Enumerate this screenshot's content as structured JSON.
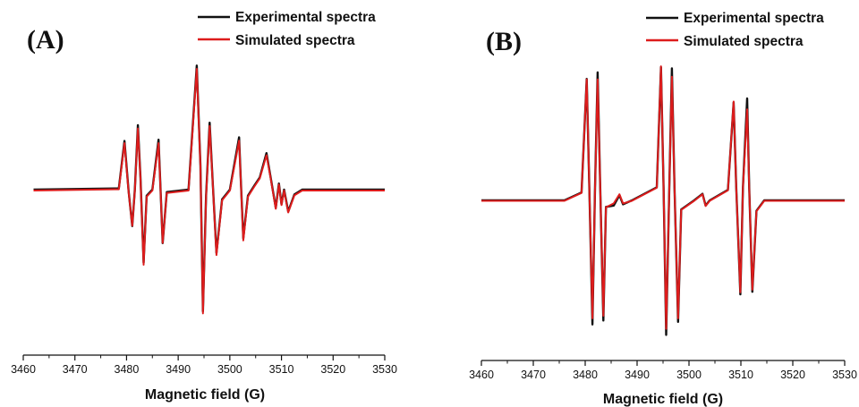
{
  "chart_data": [
    {
      "type": "line",
      "panel_label": "(A)",
      "xlabel": "Magnetic field (G)",
      "ylabel": "",
      "xlim": [
        3460,
        3530
      ],
      "ylim": [
        -1.0,
        1.0
      ],
      "xticks": [
        3460,
        3470,
        3480,
        3490,
        3500,
        3510,
        3520,
        3530
      ],
      "y_axis_visible": false,
      "legend_position": "top-right",
      "series": [
        {
          "name": "Experimental spectra",
          "color": "#111111",
          "points": [
            [
              3462,
              0.0
            ],
            [
              3478.5,
              0.01
            ],
            [
              3479.6,
              0.4
            ],
            [
              3480.4,
              -0.01
            ],
            [
              3481.1,
              -0.3
            ],
            [
              3481.6,
              0.0
            ],
            [
              3482.2,
              0.53
            ],
            [
              3482.7,
              0.1
            ],
            [
              3483.3,
              -0.6
            ],
            [
              3483.9,
              -0.05
            ],
            [
              3485.0,
              0.0
            ],
            [
              3486.2,
              0.41
            ],
            [
              3486.5,
              0.1
            ],
            [
              3487.0,
              -0.44
            ],
            [
              3487.8,
              -0.02
            ],
            [
              3492.0,
              0.0
            ],
            [
              3493.6,
              1.02
            ],
            [
              3494.3,
              0.2
            ],
            [
              3494.8,
              -1.0
            ],
            [
              3495.4,
              -0.05
            ],
            [
              3496.1,
              0.55
            ],
            [
              3496.7,
              0.05
            ],
            [
              3497.4,
              -0.52
            ],
            [
              3498.5,
              -0.08
            ],
            [
              3500.0,
              0.0
            ],
            [
              3501.8,
              0.43
            ],
            [
              3502.1,
              0.1
            ],
            [
              3502.6,
              -0.4
            ],
            [
              3503.5,
              -0.05
            ],
            [
              3504.7,
              0.03
            ],
            [
              3505.8,
              0.1
            ],
            [
              3507.1,
              0.3
            ],
            [
              3507.9,
              0.1
            ],
            [
              3508.9,
              -0.15
            ],
            [
              3509.5,
              0.05
            ],
            [
              3510.0,
              -0.12
            ],
            [
              3510.5,
              0.0
            ],
            [
              3511.3,
              -0.18
            ],
            [
              3512.5,
              -0.04
            ],
            [
              3514.0,
              0.0
            ],
            [
              3530.0,
              0.0
            ]
          ]
        },
        {
          "name": "Simulated spectra",
          "color": "#dd1c1c",
          "points": [
            [
              3462,
              0.0
            ],
            [
              3478.5,
              0.01
            ],
            [
              3479.6,
              0.39
            ],
            [
              3480.4,
              -0.01
            ],
            [
              3481.1,
              -0.29
            ],
            [
              3481.6,
              0.0
            ],
            [
              3482.2,
              0.51
            ],
            [
              3482.7,
              0.1
            ],
            [
              3483.3,
              -0.61
            ],
            [
              3483.9,
              -0.05
            ],
            [
              3485.0,
              0.0
            ],
            [
              3486.2,
              0.39
            ],
            [
              3486.5,
              0.1
            ],
            [
              3487.0,
              -0.43
            ],
            [
              3487.8,
              -0.02
            ],
            [
              3492.0,
              0.0
            ],
            [
              3493.6,
              1.0
            ],
            [
              3494.3,
              0.2
            ],
            [
              3494.8,
              -1.01
            ],
            [
              3495.4,
              -0.05
            ],
            [
              3496.1,
              0.53
            ],
            [
              3496.7,
              0.05
            ],
            [
              3497.4,
              -0.53
            ],
            [
              3498.5,
              -0.08
            ],
            [
              3500.0,
              0.0
            ],
            [
              3501.8,
              0.41
            ],
            [
              3502.1,
              0.1
            ],
            [
              3502.6,
              -0.41
            ],
            [
              3503.5,
              -0.05
            ],
            [
              3504.7,
              0.03
            ],
            [
              3505.8,
              0.1
            ],
            [
              3507.1,
              0.29
            ],
            [
              3507.9,
              0.1
            ],
            [
              3508.9,
              -0.15
            ],
            [
              3509.5,
              0.05
            ],
            [
              3510.0,
              -0.12
            ],
            [
              3510.5,
              0.0
            ],
            [
              3511.3,
              -0.18
            ],
            [
              3512.5,
              -0.04
            ],
            [
              3514.0,
              0.0
            ],
            [
              3530.0,
              0.0
            ]
          ]
        }
      ]
    },
    {
      "type": "line",
      "panel_label": "(B)",
      "xlabel": "Magnetic field (G)",
      "ylabel": "",
      "xlim": [
        3460,
        3530
      ],
      "ylim": [
        -1.0,
        1.0
      ],
      "xticks": [
        3460,
        3470,
        3480,
        3490,
        3500,
        3510,
        3520,
        3530
      ],
      "y_axis_visible": false,
      "legend_position": "top-right",
      "series": [
        {
          "name": "Experimental spectra",
          "color": "#111111",
          "points": [
            [
              3460,
              0.0
            ],
            [
              3476.0,
              0.0
            ],
            [
              3479.3,
              0.06
            ],
            [
              3480.3,
              0.93
            ],
            [
              3480.8,
              0.1
            ],
            [
              3481.4,
              -0.95
            ],
            [
              3481.9,
              0.1
            ],
            [
              3482.4,
              0.98
            ],
            [
              3482.9,
              0.1
            ],
            [
              3483.5,
              -0.92
            ],
            [
              3484.0,
              -0.05
            ],
            [
              3485.5,
              -0.04
            ],
            [
              3486.6,
              0.04
            ],
            [
              3487.3,
              -0.03
            ],
            [
              3489.0,
              0.0
            ],
            [
              3493.8,
              0.1
            ],
            [
              3494.6,
              1.02
            ],
            [
              3495.1,
              0.1
            ],
            [
              3495.6,
              -1.03
            ],
            [
              3496.2,
              0.1
            ],
            [
              3496.7,
              1.01
            ],
            [
              3497.2,
              0.1
            ],
            [
              3497.9,
              -0.93
            ],
            [
              3498.5,
              -0.07
            ],
            [
              3501.0,
              0.0
            ],
            [
              3502.6,
              0.05
            ],
            [
              3503.2,
              -0.04
            ],
            [
              3504.0,
              0.0
            ],
            [
              3507.5,
              0.08
            ],
            [
              3508.6,
              0.75
            ],
            [
              3509.1,
              0.1
            ],
            [
              3509.9,
              -0.72
            ],
            [
              3510.4,
              0.1
            ],
            [
              3511.2,
              0.78
            ],
            [
              3511.6,
              0.1
            ],
            [
              3512.2,
              -0.7
            ],
            [
              3513.0,
              -0.08
            ],
            [
              3514.5,
              0.0
            ],
            [
              3530.0,
              0.0
            ]
          ]
        },
        {
          "name": "Simulated spectra",
          "color": "#dd1c1c",
          "points": [
            [
              3460,
              0.0
            ],
            [
              3476.0,
              0.0
            ],
            [
              3479.3,
              0.06
            ],
            [
              3480.3,
              0.93
            ],
            [
              3480.8,
              0.1
            ],
            [
              3481.4,
              -0.9
            ],
            [
              3481.9,
              0.1
            ],
            [
              3482.4,
              0.93
            ],
            [
              3482.9,
              0.1
            ],
            [
              3483.5,
              -0.88
            ],
            [
              3484.0,
              -0.05
            ],
            [
              3485.5,
              -0.02
            ],
            [
              3486.6,
              0.05
            ],
            [
              3487.3,
              -0.02
            ],
            [
              3489.0,
              0.0
            ],
            [
              3493.8,
              0.1
            ],
            [
              3494.6,
              1.03
            ],
            [
              3495.1,
              0.1
            ],
            [
              3495.6,
              -0.98
            ],
            [
              3496.2,
              0.1
            ],
            [
              3496.7,
              0.95
            ],
            [
              3497.2,
              0.1
            ],
            [
              3497.9,
              -0.9
            ],
            [
              3498.5,
              -0.07
            ],
            [
              3501.0,
              0.0
            ],
            [
              3502.6,
              0.05
            ],
            [
              3503.2,
              -0.04
            ],
            [
              3504.0,
              0.0
            ],
            [
              3507.5,
              0.08
            ],
            [
              3508.6,
              0.76
            ],
            [
              3509.1,
              0.1
            ],
            [
              3509.9,
              -0.7
            ],
            [
              3510.4,
              0.1
            ],
            [
              3511.2,
              0.7
            ],
            [
              3511.6,
              0.1
            ],
            [
              3512.2,
              -0.68
            ],
            [
              3513.0,
              -0.08
            ],
            [
              3514.5,
              0.0
            ],
            [
              3530.0,
              0.0
            ]
          ]
        }
      ]
    }
  ]
}
